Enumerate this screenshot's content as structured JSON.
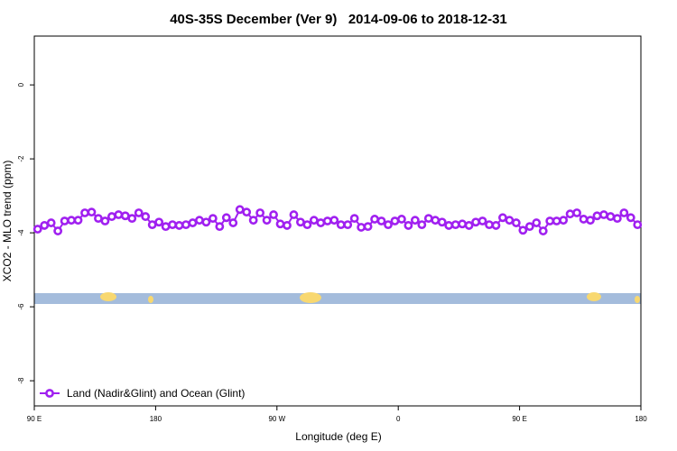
{
  "chart_data": {
    "type": "line",
    "title": "40S-35S December (Ver 9)   2014-09-06 to 2018-12-31",
    "xlabel": "Longitude (deg E)",
    "ylabel": "XCO2 - MLO trend (ppm)",
    "xlim": [
      90,
      540
    ],
    "ylim": [
      -8.68,
      1.32
    ],
    "xticks": [
      {
        "value": 90,
        "label": "90 E"
      },
      {
        "value": 180,
        "label": "180"
      },
      {
        "value": 270,
        "label": "90 W"
      },
      {
        "value": 360,
        "label": "0"
      },
      {
        "value": 450,
        "label": "90 E"
      },
      {
        "value": 540,
        "label": "180"
      }
    ],
    "yticks": [
      0,
      -2,
      -4,
      -6,
      -8
    ],
    "legend": "bottom-left",
    "series": [
      {
        "name": "Land (Nadir&Glint) and Ocean (Glint)",
        "color": "#a020f0",
        "x": [
          92.5,
          97.5,
          102.5,
          107.5,
          112.5,
          117.5,
          122.5,
          127.5,
          132.5,
          137.5,
          142.5,
          147.5,
          152.5,
          157.5,
          162.5,
          167.5,
          172.5,
          177.5,
          182.5,
          187.5,
          192.5,
          197.5,
          202.5,
          207.5,
          212.5,
          217.5,
          222.5,
          227.5,
          232.5,
          237.5,
          242.5,
          247.5,
          252.5,
          257.5,
          262.5,
          267.5,
          272.5,
          277.5,
          282.5,
          287.5,
          292.5,
          297.5,
          302.5,
          307.5,
          312.5,
          317.5,
          322.5,
          327.5,
          332.5,
          337.5,
          342.5,
          347.5,
          352.5,
          357.5,
          362.5,
          367.5,
          372.5,
          377.5,
          382.5,
          387.5,
          392.5,
          397.5,
          402.5,
          407.5,
          412.5,
          417.5,
          422.5,
          427.5,
          432.5,
          437.5,
          442.5,
          447.5,
          452.5,
          457.5,
          462.5,
          467.5,
          472.5,
          477.5,
          482.5,
          487.5,
          492.5,
          497.5,
          502.5,
          507.5,
          512.5,
          517.5,
          522.5,
          527.5,
          532.5,
          537.5
        ],
        "values": [
          -3.9,
          -3.8,
          -3.73,
          -3.95,
          -3.68,
          -3.66,
          -3.66,
          -3.46,
          -3.44,
          -3.61,
          -3.68,
          -3.56,
          -3.51,
          -3.54,
          -3.61,
          -3.46,
          -3.56,
          -3.78,
          -3.71,
          -3.83,
          -3.78,
          -3.8,
          -3.78,
          -3.73,
          -3.66,
          -3.71,
          -3.61,
          -3.83,
          -3.59,
          -3.73,
          -3.37,
          -3.44,
          -3.66,
          -3.46,
          -3.66,
          -3.51,
          -3.76,
          -3.8,
          -3.51,
          -3.71,
          -3.78,
          -3.66,
          -3.73,
          -3.68,
          -3.66,
          -3.78,
          -3.78,
          -3.61,
          -3.85,
          -3.83,
          -3.63,
          -3.68,
          -3.78,
          -3.68,
          -3.63,
          -3.8,
          -3.66,
          -3.78,
          -3.61,
          -3.66,
          -3.71,
          -3.8,
          -3.78,
          -3.76,
          -3.8,
          -3.71,
          -3.68,
          -3.78,
          -3.8,
          -3.59,
          -3.66,
          -3.73,
          -3.93,
          -3.83,
          -3.73,
          -3.95,
          -3.68,
          -3.68,
          -3.66,
          -3.49,
          -3.46,
          -3.63,
          -3.66,
          -3.54,
          -3.51,
          -3.56,
          -3.61,
          -3.46,
          -3.59,
          -3.78
        ]
      }
    ]
  }
}
